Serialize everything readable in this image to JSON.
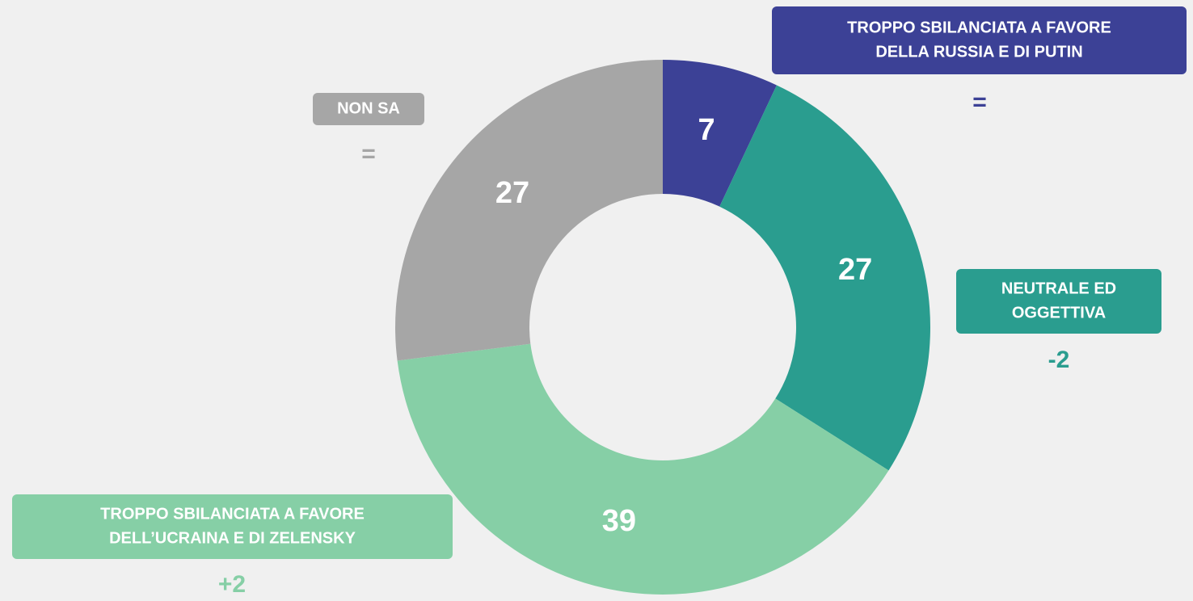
{
  "chart_data": {
    "type": "pie",
    "categories": [
      [
        "TROPPO SBILANCIATA A FAVORE",
        "DELLA RUSSIA E DI PUTIN"
      ],
      [
        "NEUTRALE ED",
        "OGGETTIVA"
      ],
      [
        "TROPPO SBILANCIATA A FAVORE",
        "DELL’UCRAINA E DI ZELENSKY"
      ],
      [
        "NON SA"
      ]
    ],
    "values": [
      7,
      27,
      39,
      27
    ],
    "colors": [
      "#3c4196",
      "#2a9d8f",
      "#86cfa6",
      "#a6a6a6"
    ],
    "changes": [
      "=",
      "-2",
      "+2",
      "="
    ]
  }
}
